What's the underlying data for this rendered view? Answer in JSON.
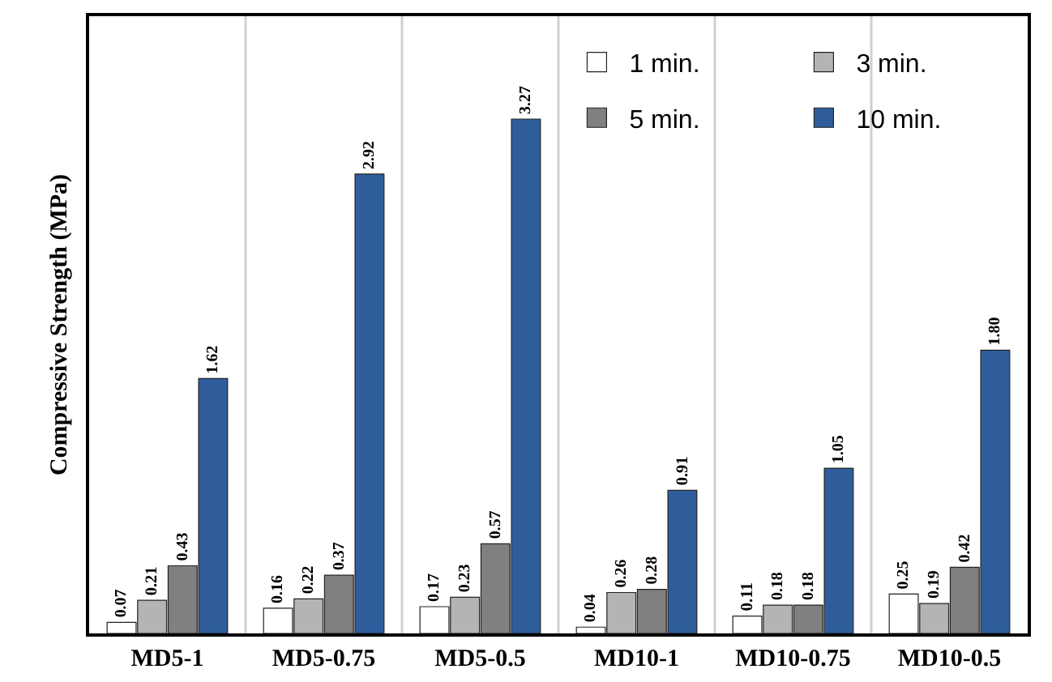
{
  "chart_data": {
    "type": "bar",
    "ylabel": "Compressive Strength (MPa)",
    "categories": [
      "MD5-1",
      "MD5-0.75",
      "MD5-0.5",
      "MD10-1",
      "MD10-0.75",
      "MD10-0.5"
    ],
    "series": [
      {
        "name": "1 min.",
        "color": "#ffffff",
        "values": [
          0.07,
          0.16,
          0.17,
          0.04,
          0.11,
          0.25
        ],
        "value_labels": [
          "0.07",
          "0.16",
          "0.17",
          "0.04",
          "0.11",
          "0.25"
        ]
      },
      {
        "name": "3 min.",
        "color": "#b4b4b4",
        "values": [
          0.21,
          0.22,
          0.23,
          0.26,
          0.18,
          0.19
        ],
        "value_labels": [
          "0.21",
          "0.22",
          "0.23",
          "0.26",
          "0.18",
          "0.19"
        ]
      },
      {
        "name": "5 min.",
        "color": "#808080",
        "values": [
          0.43,
          0.37,
          0.57,
          0.28,
          0.18,
          0.42
        ],
        "value_labels": [
          "0.43",
          "0.37",
          "0.57",
          "0.28",
          "0.18",
          "0.42"
        ]
      },
      {
        "name": "10 min.",
        "color": "#2f5d9c",
        "values": [
          1.62,
          2.92,
          3.27,
          0.91,
          1.05,
          1.8
        ],
        "value_labels": [
          "1.62",
          "2.92",
          "3.27",
          "0.91",
          "1.05",
          "1.80"
        ]
      }
    ],
    "grid": "x",
    "legend": "top right"
  }
}
